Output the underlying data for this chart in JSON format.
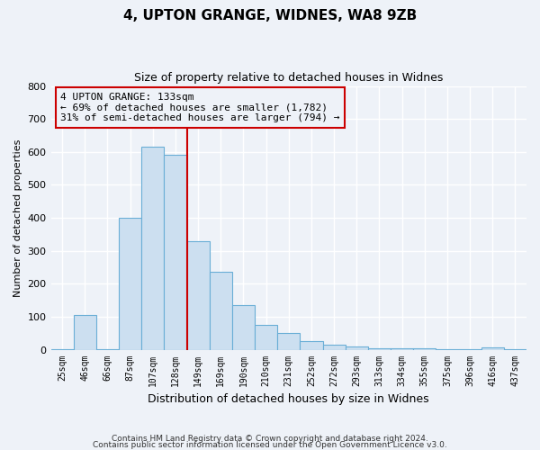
{
  "title_line1": "4, UPTON GRANGE, WIDNES, WA8 9ZB",
  "title_line2": "Size of property relative to detached houses in Widnes",
  "xlabel": "Distribution of detached houses by size in Widnes",
  "ylabel": "Number of detached properties",
  "bar_labels": [
    "25sqm",
    "46sqm",
    "66sqm",
    "87sqm",
    "107sqm",
    "128sqm",
    "149sqm",
    "169sqm",
    "190sqm",
    "210sqm",
    "231sqm",
    "252sqm",
    "272sqm",
    "293sqm",
    "313sqm",
    "334sqm",
    "355sqm",
    "375sqm",
    "396sqm",
    "416sqm",
    "437sqm"
  ],
  "bar_values": [
    2,
    105,
    2,
    400,
    615,
    590,
    330,
    235,
    135,
    75,
    50,
    25,
    15,
    10,
    5,
    3,
    3,
    2,
    2,
    8,
    2
  ],
  "bar_color": "#ccdff0",
  "bar_edge_color": "#6aaed6",
  "vline_x": 5.5,
  "vline_color": "#cc0000",
  "ylim": [
    0,
    800
  ],
  "yticks": [
    0,
    100,
    200,
    300,
    400,
    500,
    600,
    700,
    800
  ],
  "annotation_text": "4 UPTON GRANGE: 133sqm\n← 69% of detached houses are smaller (1,782)\n31% of semi-detached houses are larger (794) →",
  "annotation_box_color": "#cc0000",
  "footer_line1": "Contains HM Land Registry data © Crown copyright and database right 2024.",
  "footer_line2": "Contains public sector information licensed under the Open Government Licence v3.0.",
  "background_color": "#eef2f8",
  "grid_color": "#ffffff"
}
